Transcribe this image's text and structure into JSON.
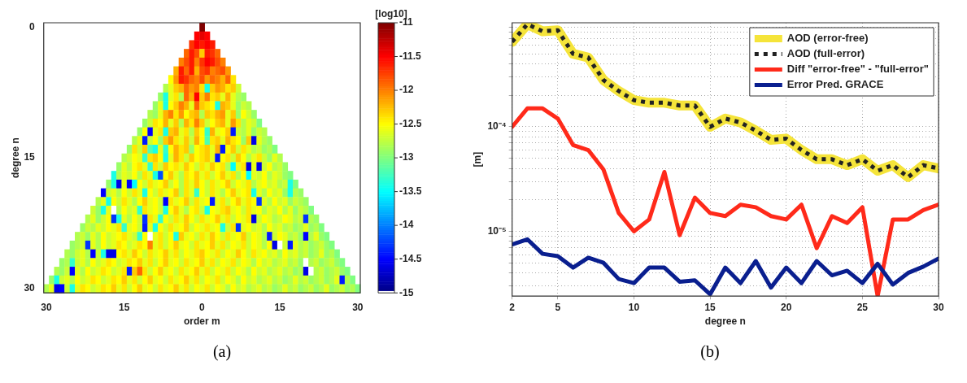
{
  "chart_data": [
    {
      "type": "heatmap",
      "xlabel": "order m",
      "ylabel": "degree n",
      "clabel": "[log10]",
      "annotations": [
        "(a)"
      ],
      "categories": [
        "30",
        null,
        null,
        null,
        null,
        null,
        null,
        null,
        null,
        null,
        null,
        null,
        null,
        null,
        null,
        "15",
        null,
        null,
        null,
        null,
        null,
        null,
        null,
        null,
        null,
        null,
        null,
        null,
        null,
        null,
        "0",
        null,
        null,
        null,
        null,
        null,
        null,
        null,
        null,
        null,
        null,
        null,
        null,
        null,
        null,
        "15",
        null,
        null,
        null,
        null,
        null,
        null,
        null,
        null,
        null,
        null,
        null,
        null,
        null,
        null,
        "30"
      ],
      "y_categories": [
        "0",
        null,
        null,
        null,
        null,
        null,
        null,
        null,
        null,
        null,
        null,
        null,
        null,
        null,
        null,
        "15",
        null,
        null,
        null,
        null,
        null,
        null,
        null,
        null,
        null,
        null,
        null,
        null,
        null,
        null,
        "30"
      ],
      "clim": [
        -15,
        -11
      ],
      "cticks": [
        -11,
        -11.5,
        -12,
        -12.5,
        -13,
        -13.5,
        -14,
        -14.5,
        -15
      ],
      "cells": [
        [
          null,
          null,
          null,
          null,
          null,
          null,
          null,
          null,
          null,
          null,
          null,
          null,
          null,
          null,
          null,
          null,
          null,
          null,
          null,
          null,
          null,
          null,
          null,
          null,
          null,
          null,
          null,
          null,
          null,
          null,
          -11.0,
          null,
          null,
          null,
          null,
          null,
          null,
          null,
          null,
          null,
          null,
          null,
          null,
          null,
          null,
          null,
          null,
          null,
          null,
          null,
          null,
          null,
          null,
          null,
          null,
          null,
          null,
          null,
          null,
          null,
          null
        ],
        [
          null,
          null,
          null,
          null,
          null,
          null,
          null,
          null,
          null,
          null,
          null,
          null,
          null,
          null,
          null,
          null,
          null,
          null,
          null,
          null,
          null,
          null,
          null,
          null,
          null,
          null,
          null,
          null,
          null,
          -11.5,
          -11.4,
          -11.5,
          null,
          null,
          null,
          null,
          null,
          null,
          null,
          null,
          null,
          null,
          null,
          null,
          null,
          null,
          null,
          null,
          null,
          null,
          null,
          null,
          null,
          null,
          null,
          null,
          null,
          null,
          null,
          null,
          null
        ],
        [
          null,
          null,
          null,
          null,
          null,
          null,
          null,
          null,
          null,
          null,
          null,
          null,
          null,
          null,
          null,
          null,
          null,
          null,
          null,
          null,
          null,
          null,
          null,
          null,
          null,
          null,
          null,
          null,
          -11.7,
          -11.5,
          -11.6,
          -11.5,
          -11.6,
          null,
          null,
          null,
          null,
          null,
          null,
          null,
          null,
          null,
          null,
          null,
          null,
          null,
          null,
          null,
          null,
          null,
          null,
          null,
          null,
          null,
          null,
          null,
          null,
          null,
          null,
          null,
          null
        ],
        [
          null,
          null,
          null,
          null,
          null,
          null,
          null,
          null,
          null,
          null,
          null,
          null,
          null,
          null,
          null,
          null,
          null,
          null,
          null,
          null,
          null,
          null,
          null,
          null,
          null,
          null,
          null,
          -11.9,
          -11.6,
          -11.8,
          -12.3,
          -11.6,
          -11.7,
          -11.9,
          null,
          null,
          null,
          null,
          null,
          null,
          null,
          null,
          null,
          null,
          null,
          null,
          null,
          null,
          null,
          null,
          null,
          null,
          null,
          null,
          null,
          null,
          null,
          null,
          null,
          null,
          null
        ],
        [
          null,
          null,
          null,
          null,
          null,
          null,
          null,
          null,
          null,
          null,
          null,
          null,
          null,
          null,
          null,
          null,
          null,
          null,
          null,
          null,
          null,
          null,
          null,
          null,
          null,
          null,
          -12.0,
          -11.8,
          -11.6,
          -12.0,
          -11.7,
          -11.5,
          -11.6,
          -11.8,
          -12.0,
          null,
          null,
          null,
          null,
          null,
          null,
          null,
          null,
          null,
          null,
          null,
          null,
          null,
          null,
          null,
          null,
          null,
          null,
          null,
          null,
          null,
          null,
          null,
          null,
          null,
          null
        ],
        [
          null,
          null,
          null,
          null,
          null,
          null,
          null,
          null,
          null,
          null,
          null,
          null,
          null,
          null,
          null,
          null,
          null,
          null,
          null,
          null,
          null,
          null,
          null,
          null,
          null,
          -12.2,
          -11.6,
          -11.9,
          -11.6,
          -12.2,
          -11.8,
          -11.7,
          -12.0,
          -11.9,
          -11.8,
          -12.1,
          null,
          null,
          null,
          null,
          null,
          null,
          null,
          null,
          null,
          null,
          null,
          null,
          null,
          null,
          null,
          null,
          null,
          null,
          null,
          null,
          null,
          null,
          null,
          null,
          null
        ],
        [
          null,
          null,
          null,
          null,
          null,
          null,
          null,
          null,
          null,
          null,
          null,
          null,
          null,
          null,
          null,
          null,
          null,
          null,
          null,
          null,
          null,
          null,
          null,
          null,
          -12.5,
          -12.1,
          -11.6,
          -11.7,
          -11.9,
          -12.0,
          -11.8,
          -12.1,
          -11.9,
          -12.0,
          -12.2,
          -11.9,
          -12.4,
          null,
          null,
          null,
          null,
          null,
          null,
          null,
          null,
          null,
          null,
          null,
          null,
          null,
          null,
          null,
          null,
          null,
          null,
          null,
          null,
          null,
          null,
          null,
          null
        ],
        [
          null,
          null,
          null,
          null,
          null,
          null,
          null,
          null,
          null,
          null,
          null,
          null,
          null,
          null,
          null,
          null,
          null,
          null,
          null,
          null,
          null,
          null,
          null,
          -12.8,
          -12.6,
          -12.3,
          -12.2,
          -11.9,
          -12.1,
          -12.0,
          -12.4,
          -13.4,
          -12.3,
          -12.1,
          -12.2,
          -12.4,
          -12.3,
          -12.7,
          null,
          null,
          null,
          null,
          null,
          null,
          null,
          null,
          null,
          null,
          null,
          null,
          null,
          null,
          null,
          null,
          null,
          null,
          null,
          null,
          null,
          null,
          null
        ],
        [
          null,
          null,
          null,
          null,
          null,
          null,
          null,
          null,
          null,
          null,
          null,
          null,
          null,
          null,
          null,
          null,
          null,
          null,
          null,
          null,
          null,
          null,
          -12.9,
          -13.4,
          -12.6,
          -12.4,
          -12.8,
          -11.9,
          -12.2,
          -11.5,
          -12.3,
          -12.0,
          -12.4,
          -12.3,
          -12.6,
          -12.2,
          -12.6,
          -12.8,
          -12.9,
          null,
          null,
          null,
          null,
          null,
          null,
          null,
          null,
          null,
          null,
          null,
          null,
          null,
          null,
          null,
          null,
          null,
          null,
          null,
          null,
          null,
          null
        ],
        [
          null,
          null,
          null,
          null,
          null,
          null,
          null,
          null,
          null,
          null,
          null,
          null,
          null,
          null,
          null,
          null,
          null,
          null,
          null,
          null,
          null,
          -12.9,
          -12.6,
          -13.4,
          -12.5,
          -12.3,
          -12.0,
          -12.2,
          -12.6,
          -11.9,
          -12.3,
          -12.4,
          -12.5,
          -13.4,
          -12.2,
          -12.3,
          -12.6,
          -12.9,
          -12.7,
          -12.8,
          null,
          null,
          null,
          null,
          null,
          null,
          null,
          null,
          null,
          null,
          null,
          null,
          null,
          null,
          null,
          null,
          null,
          null,
          null,
          null,
          null
        ],
        [
          null,
          null,
          null,
          null,
          null,
          null,
          null,
          null,
          null,
          null,
          null,
          null,
          null,
          null,
          null,
          null,
          null,
          null,
          null,
          null,
          -12.8,
          -12.9,
          -12.6,
          -12.2,
          -12.0,
          -12.4,
          -12.1,
          -12.5,
          -12.3,
          -12.2,
          -12.8,
          -12.3,
          -12.4,
          -12.2,
          -12.1,
          -12.6,
          -12.3,
          -12.9,
          -12.5,
          -12.7,
          -12.9,
          null,
          null,
          null,
          null,
          null,
          null,
          null,
          null,
          null,
          null,
          null,
          null,
          null,
          null,
          null,
          null,
          null,
          null,
          null,
          null
        ],
        [
          null,
          null,
          null,
          null,
          null,
          null,
          null,
          null,
          null,
          null,
          null,
          null,
          null,
          null,
          null,
          null,
          null,
          null,
          null,
          -12.9,
          -12.7,
          -12.4,
          -12.5,
          -12.2,
          -12.6,
          -12.3,
          -12.8,
          -12.2,
          -12.4,
          -12.0,
          -12.3,
          -12.7,
          -12.5,
          -12.3,
          -12.2,
          -12.6,
          -12.1,
          -12.4,
          -12.8,
          -12.6,
          -12.7,
          -13.0,
          null,
          null,
          null,
          null,
          null,
          null,
          null,
          null,
          null,
          null,
          null,
          null,
          null,
          null,
          null,
          null,
          null,
          null,
          null
        ],
        [
          null,
          null,
          null,
          null,
          null,
          null,
          null,
          null,
          null,
          null,
          null,
          null,
          null,
          null,
          null,
          null,
          null,
          null,
          -12.9,
          -12.5,
          -14.5,
          -12.6,
          -12.4,
          -13.4,
          -12.3,
          -12.2,
          -12.6,
          -12.4,
          -12.8,
          -12.3,
          -12.5,
          -13.3,
          -12.2,
          -12.6,
          -12.5,
          -12.3,
          -14.4,
          -12.7,
          -12.8,
          -12.6,
          -12.9,
          -12.7,
          -12.8,
          null,
          null,
          null,
          null,
          null,
          null,
          null,
          null,
          null,
          null,
          null,
          null,
          null,
          null,
          null,
          null,
          null,
          null
        ],
        [
          null,
          null,
          null,
          null,
          null,
          null,
          null,
          null,
          null,
          null,
          null,
          null,
          null,
          null,
          null,
          null,
          null,
          -12.8,
          -12.6,
          -14.4,
          -12.7,
          -12.5,
          -12.9,
          -12.3,
          -12.1,
          -12.4,
          -12.6,
          -12.3,
          -12.7,
          -12.2,
          -12.5,
          -13.2,
          -12.4,
          -12.3,
          -12.6,
          -12.2,
          -12.4,
          -12.5,
          -12.9,
          -12.3,
          -14.6,
          -12.6,
          -12.8,
          -12.9,
          null,
          null,
          null,
          null,
          null,
          null,
          null,
          null,
          null,
          null,
          null,
          null,
          null,
          null,
          null,
          null,
          null
        ],
        [
          null,
          null,
          null,
          null,
          null,
          null,
          null,
          null,
          null,
          null,
          null,
          null,
          null,
          null,
          null,
          null,
          -12.9,
          -12.4,
          -12.7,
          -12.3,
          -13.2,
          -13.4,
          -12.6,
          -13.3,
          -12.5,
          -12.2,
          -12.4,
          -12.3,
          -12.9,
          -12.5,
          -12.4,
          -12.3,
          -12.6,
          -12.2,
          -14.4,
          -12.5,
          -12.3,
          -12.7,
          -12.4,
          -12.6,
          -12.8,
          -12.7,
          -12.9,
          -12.8,
          -13.0,
          null,
          null,
          null,
          null,
          null,
          null,
          null,
          null,
          null,
          null,
          null,
          null,
          null,
          null,
          null,
          null
        ],
        [
          null,
          null,
          null,
          null,
          null,
          null,
          null,
          null,
          null,
          null,
          null,
          null,
          null,
          null,
          null,
          -12.8,
          -12.7,
          -12.5,
          -12.6,
          -13.3,
          -12.4,
          -12.3,
          -12.5,
          -13.4,
          -12.6,
          -12.2,
          -12.4,
          -12.7,
          -12.3,
          -12.5,
          -12.4,
          -12.3,
          -12.6,
          -14.4,
          -12.5,
          -12.4,
          -12.7,
          -12.3,
          -12.5,
          -12.8,
          -12.6,
          -12.4,
          -12.7,
          -12.9,
          -12.6,
          -12.8,
          null,
          null,
          null,
          null,
          null,
          null,
          null,
          null,
          null,
          null,
          null,
          null,
          null,
          null,
          null
        ],
        [
          null,
          null,
          null,
          null,
          null,
          null,
          null,
          null,
          null,
          null,
          null,
          null,
          null,
          null,
          -12.9,
          -12.6,
          -12.8,
          -12.5,
          -12.4,
          -12.6,
          -13.3,
          -12.4,
          -12.7,
          -12.3,
          -12.5,
          -12.4,
          -12.6,
          -12.3,
          -12.5,
          -12.7,
          -12.4,
          -12.6,
          -12.3,
          -12.5,
          -12.4,
          -12.8,
          -13.5,
          -12.6,
          -12.4,
          -14.6,
          -12.6,
          -14.6,
          -12.7,
          -12.5,
          -12.8,
          -12.7,
          -12.9,
          null,
          null,
          null,
          null,
          null,
          null,
          null,
          null,
          null,
          null,
          null,
          null,
          null,
          null
        ],
        [
          null,
          null,
          null,
          null,
          null,
          null,
          null,
          null,
          null,
          null,
          null,
          null,
          null,
          -13.4,
          -12.8,
          -12.6,
          -12.7,
          -12.5,
          -12.8,
          -12.4,
          -12.6,
          -13.4,
          -14.2,
          -12.5,
          -12.3,
          -12.6,
          -12.8,
          -12.4,
          -12.5,
          -12.3,
          -12.6,
          -12.4,
          -12.7,
          -12.5,
          -12.3,
          -12.6,
          -12.4,
          -12.8,
          -12.5,
          -13.5,
          -12.6,
          -12.7,
          -12.5,
          -12.8,
          -12.6,
          -12.7,
          -12.9,
          -13.0,
          null,
          null,
          null,
          null,
          null,
          null,
          null,
          null,
          null,
          null,
          null,
          null,
          null
        ],
        [
          null,
          null,
          null,
          null,
          null,
          null,
          null,
          null,
          null,
          null,
          null,
          null,
          -12.9,
          -13.4,
          -14.6,
          -12.6,
          -14.5,
          -13.5,
          -12.5,
          -12.7,
          -12.4,
          -12.6,
          -12.5,
          -12.3,
          -12.7,
          -12.5,
          -12.8,
          -12.4,
          -12.6,
          -12.3,
          -12.5,
          -12.7,
          -12.4,
          -12.6,
          -12.5,
          -12.3,
          -12.7,
          -12.5,
          -12.6,
          -12.4,
          -12.8,
          -12.6,
          -12.5,
          -12.7,
          -12.6,
          -12.8,
          -12.7,
          -13.4,
          -13.0,
          null,
          null,
          null,
          null,
          null,
          null,
          null,
          null,
          null,
          null,
          null,
          null
        ],
        [
          null,
          null,
          null,
          null,
          null,
          null,
          null,
          null,
          null,
          null,
          null,
          -14.5,
          -12.7,
          -12.6,
          -12.8,
          -12.5,
          -12.7,
          -12.4,
          -12.6,
          -13.4,
          -12.5,
          -12.7,
          -12.4,
          -12.6,
          -12.5,
          -12.3,
          -12.8,
          -12.4,
          -12.6,
          -13.3,
          -12.5,
          -12.7,
          -12.4,
          -12.6,
          -12.8,
          -12.5,
          -12.3,
          -12.6,
          -12.5,
          -12.4,
          -13.4,
          -12.6,
          -12.8,
          -12.5,
          -12.7,
          -12.6,
          -12.9,
          -13.4,
          -12.8,
          -12.9,
          null,
          null,
          null,
          null,
          null,
          null,
          null,
          null,
          null,
          null,
          null
        ],
        [
          null,
          null,
          null,
          null,
          null,
          null,
          null,
          null,
          null,
          null,
          -12.8,
          -12.6,
          -13.4,
          -12.5,
          -12.7,
          -12.4,
          -12.6,
          -12.8,
          -12.5,
          -12.3,
          -12.6,
          -12.5,
          -12.7,
          -14.5,
          -12.4,
          -12.6,
          -12.5,
          -12.3,
          -12.7,
          -12.4,
          -12.6,
          -12.5,
          -14.4,
          -12.6,
          -12.4,
          -12.7,
          -12.5,
          -12.3,
          -12.6,
          -12.4,
          -12.5,
          -14.3,
          -12.6,
          -12.8,
          -12.5,
          -12.7,
          -12.6,
          -12.9,
          -12.7,
          -12.8,
          -12.9,
          null,
          null,
          null,
          null,
          null,
          null,
          null,
          null,
          null,
          null
        ],
        [
          null,
          null,
          null,
          null,
          null,
          null,
          null,
          null,
          null,
          -12.7,
          -12.9,
          -13.4,
          -12.6,
          -15.0,
          -12.8,
          -12.5,
          -12.7,
          -12.6,
          -13.3,
          -12.4,
          -12.6,
          -12.5,
          -12.7,
          -13.4,
          -12.5,
          -12.3,
          -12.6,
          -12.8,
          -12.5,
          -12.4,
          -12.7,
          -13.4,
          -12.5,
          -12.6,
          -12.4,
          -12.3,
          -12.6,
          -12.5,
          -12.7,
          -12.4,
          -12.6,
          -12.5,
          -12.8,
          -12.6,
          -12.7,
          -12.5,
          -12.8,
          -12.6,
          -12.9,
          -12.7,
          -12.8,
          -13.0,
          null,
          null,
          null,
          null,
          null,
          null,
          null,
          null,
          null
        ],
        [
          null,
          null,
          null,
          null,
          null,
          null,
          null,
          null,
          -12.8,
          -12.6,
          -12.9,
          -12.7,
          -12.5,
          -14.3,
          -13.4,
          -12.6,
          -12.8,
          -12.5,
          -12.7,
          -14.3,
          -12.4,
          -12.6,
          -13.3,
          -12.5,
          -12.7,
          -12.4,
          -12.6,
          -12.3,
          -12.5,
          -12.7,
          -12.4,
          -12.6,
          -12.5,
          -12.3,
          -12.6,
          -12.4,
          -12.7,
          -12.5,
          -12.6,
          -12.4,
          -14.6,
          -12.7,
          -12.5,
          -12.6,
          -12.8,
          -12.7,
          -12.5,
          -12.6,
          -12.8,
          -12.7,
          -14.3,
          -12.8,
          -12.9,
          null,
          null,
          null,
          null,
          null,
          null,
          null,
          null
        ],
        [
          null,
          null,
          null,
          null,
          null,
          null,
          null,
          -12.9,
          -12.7,
          -12.8,
          -12.6,
          -12.7,
          -12.5,
          -12.6,
          -12.4,
          -13.3,
          -12.6,
          -12.5,
          -12.7,
          -14.4,
          -12.6,
          -13.4,
          -12.5,
          -12.7,
          -12.4,
          -12.6,
          -12.5,
          -12.3,
          -12.7,
          -12.5,
          -12.6,
          -12.4,
          -12.6,
          -12.5,
          -13.4,
          -12.7,
          -12.4,
          -14.3,
          -12.6,
          -12.5,
          -12.7,
          -12.6,
          -12.8,
          -12.5,
          -12.7,
          -12.6,
          -12.8,
          -12.7,
          -12.9,
          -12.8,
          -12.6,
          -12.9,
          -12.8,
          -13.0,
          null,
          null,
          null,
          null,
          null,
          null,
          null
        ],
        [
          null,
          null,
          null,
          null,
          null,
          null,
          -12.8,
          -12.7,
          -12.9,
          -12.6,
          -12.8,
          -12.5,
          -12.7,
          -12.6,
          -12.5,
          -12.4,
          -12.6,
          -12.7,
          -13.3,
          -12.5,
          -15.0,
          -12.6,
          -12.4,
          -12.7,
          -12.5,
          -13.4,
          -12.3,
          -12.6,
          -12.5,
          -12.7,
          -12.4,
          -12.6,
          -12.3,
          -12.5,
          -12.7,
          -12.4,
          -12.6,
          -12.5,
          -12.3,
          -12.7,
          -12.5,
          -12.6,
          -12.8,
          -14.4,
          -12.7,
          -12.5,
          -12.6,
          -12.8,
          -12.7,
          -12.9,
          -14.5,
          -12.8,
          -12.6,
          -12.9,
          -13.0,
          null,
          null,
          null,
          null,
          null,
          null
        ],
        [
          null,
          null,
          null,
          null,
          null,
          -12.9,
          -12.8,
          -12.7,
          -14.3,
          -12.6,
          -12.8,
          -12.5,
          -12.7,
          -12.6,
          -12.4,
          -12.5,
          -12.7,
          -12.6,
          -12.4,
          -12.5,
          -12.0,
          -12.6,
          -12.4,
          -12.7,
          -12.5,
          -12.3,
          -12.6,
          -12.5,
          -12.7,
          -12.4,
          -12.6,
          -12.5,
          -12.3,
          -12.6,
          -12.4,
          -12.7,
          -12.5,
          -12.6,
          -12.4,
          -12.7,
          -12.5,
          -12.6,
          -12.8,
          -12.5,
          -14.6,
          -15.0,
          -12.7,
          -14.4,
          -12.6,
          -12.8,
          -12.7,
          -12.9,
          -12.8,
          -12.7,
          -12.9,
          -13.0,
          null,
          null,
          null,
          null,
          null
        ],
        [
          null,
          null,
          null,
          null,
          -12.8,
          -12.9,
          -12.7,
          -12.6,
          -12.8,
          -14.5,
          -12.7,
          -13.4,
          -14.6,
          -14.6,
          -12.5,
          -12.4,
          -12.6,
          -12.3,
          -12.5,
          -12.7,
          -12.4,
          -12.6,
          -12.5,
          -12.3,
          -12.6,
          -12.4,
          -12.7,
          -12.5,
          -12.6,
          -12.4,
          -12.3,
          -12.5,
          -12.6,
          -12.4,
          -12.7,
          -12.5,
          -12.6,
          -12.3,
          -12.5,
          -12.7,
          -12.4,
          -12.6,
          -12.5,
          -12.7,
          -12.6,
          -12.8,
          -12.5,
          -12.7,
          -12.6,
          -12.8,
          -12.7,
          -12.9,
          -12.8,
          -12.6,
          -12.9,
          -12.8,
          -13.0,
          null,
          null,
          null,
          null
        ],
        [
          null,
          null,
          null,
          -12.9,
          -12.8,
          -13.3,
          -12.7,
          -12.6,
          -12.8,
          -12.5,
          -12.7,
          -12.6,
          -12.4,
          -12.5,
          -12.7,
          -12.6,
          -12.4,
          -12.5,
          -12.3,
          -12.6,
          -12.4,
          -12.7,
          -12.5,
          -12.3,
          -12.6,
          -12.5,
          -12.7,
          -12.4,
          -12.6,
          -12.5,
          -12.3,
          -12.6,
          -12.4,
          -12.7,
          -12.5,
          -12.6,
          -12.4,
          -12.7,
          -12.5,
          -12.6,
          -12.8,
          -12.5,
          -12.7,
          -12.6,
          -12.8,
          -12.7,
          -12.6,
          -12.8,
          -12.7,
          -12.9,
          -15.0,
          -12.8,
          -12.7,
          -12.9,
          -12.8,
          -12.7,
          -12.9,
          -13.0,
          null,
          null,
          null
        ],
        [
          null,
          null,
          -12.8,
          -12.9,
          -12.7,
          -14.5,
          -12.6,
          -12.8,
          -12.5,
          -12.7,
          -12.6,
          -12.4,
          -12.5,
          -12.7,
          -12.6,
          -12.4,
          -14.4,
          -12.3,
          -11.9,
          -12.4,
          -12.7,
          -12.5,
          -12.3,
          -12.6,
          -12.5,
          -12.7,
          -12.4,
          -12.6,
          -12.5,
          -12.3,
          -12.6,
          -12.4,
          -12.7,
          -12.5,
          -12.6,
          -12.4,
          -12.7,
          -12.5,
          -12.6,
          -12.8,
          -12.5,
          -12.7,
          -12.6,
          -12.8,
          -12.7,
          -12.6,
          -12.8,
          -12.7,
          -12.9,
          -12.8,
          -14.6,
          -15.0,
          -12.8,
          -12.7,
          -12.9,
          -12.8,
          -12.7,
          -12.9,
          -13.0,
          null,
          null
        ],
        [
          null,
          -12.9,
          -13.4,
          -12.7,
          -12.6,
          -12.8,
          -12.5,
          -12.7,
          -12.6,
          -12.4,
          -12.5,
          -12.7,
          -12.6,
          -12.4,
          -12.5,
          -12.3,
          -12.6,
          -12.4,
          -12.7,
          -12.5,
          -12.3,
          -12.6,
          -12.5,
          -12.7,
          -12.4,
          -12.6,
          -12.5,
          -12.3,
          -12.6,
          -12.4,
          -12.7,
          -12.5,
          -12.6,
          -12.4,
          -12.7,
          -12.5,
          -12.6,
          -12.8,
          -12.5,
          -12.7,
          -12.6,
          -12.8,
          -12.7,
          -12.6,
          -12.8,
          -12.7,
          -12.9,
          -12.8,
          -12.6,
          -12.8,
          -12.7,
          -12.9,
          -12.8,
          -12.7,
          -12.9,
          -12.8,
          -12.6,
          -14.4,
          -12.8,
          -13.0,
          null
        ],
        [
          -12.8,
          -12.6,
          -14.6,
          -14.5,
          -12.7,
          -13.4,
          -12.6,
          -12.4,
          -12.5,
          -12.7,
          -12.6,
          -12.4,
          -12.5,
          -12.3,
          -12.6,
          -12.4,
          -12.7,
          -12.5,
          -12.3,
          -12.6,
          -12.5,
          -12.7,
          -12.4,
          -12.6,
          -12.5,
          -12.3,
          -12.6,
          -12.4,
          -12.7,
          -12.5,
          -12.6,
          -12.4,
          -12.7,
          -12.5,
          -12.6,
          -12.8,
          -12.5,
          -12.7,
          -12.6,
          -12.8,
          -12.7,
          -12.6,
          -12.8,
          -12.7,
          -12.9,
          -12.8,
          -12.6,
          -12.8,
          -12.7,
          -12.9,
          -12.8,
          -12.7,
          -12.9,
          -12.8,
          -12.6,
          -12.9,
          -12.8,
          -12.7,
          -12.9,
          -12.8,
          -13.0
        ]
      ]
    },
    {
      "type": "line",
      "xlabel": "degree n",
      "ylabel": "[m]",
      "annotations": [
        "(b)"
      ],
      "log": "y",
      "grid": true,
      "legend": "top right",
      "marker": "none",
      "x": [
        2,
        3,
        4,
        5,
        6,
        7,
        8,
        9,
        10,
        11,
        12,
        13,
        14,
        15,
        16,
        17,
        18,
        19,
        20,
        21,
        22,
        23,
        24,
        25,
        26,
        27,
        28,
        29,
        30
      ],
      "xlim": [
        2,
        30
      ],
      "xticks": [
        2,
        5,
        10,
        15,
        20,
        25,
        30
      ],
      "ylim": [
        2.4e-06,
        0.00099
      ],
      "yticks": [
        {
          "value": 3e-06,
          "label": null
        },
        {
          "value": 4e-06,
          "label": null
        },
        {
          "value": 5e-06,
          "label": null
        },
        {
          "value": 6e-06,
          "label": null
        },
        {
          "value": 7e-06,
          "label": null
        },
        {
          "value": 8e-06,
          "label": null
        },
        {
          "value": 9e-06,
          "label": null
        },
        {
          "value": 1e-05,
          "label": "10⁻⁵"
        },
        {
          "value": 2e-05,
          "label": null
        },
        {
          "value": 3e-05,
          "label": null
        },
        {
          "value": 4e-05,
          "label": null
        },
        {
          "value": 5e-05,
          "label": null
        },
        {
          "value": 6e-05,
          "label": null
        },
        {
          "value": 7e-05,
          "label": null
        },
        {
          "value": 8e-05,
          "label": null
        },
        {
          "value": 9e-05,
          "label": null
        },
        {
          "value": 0.0001,
          "label": "10⁻⁴"
        },
        {
          "value": 0.0002,
          "label": null
        },
        {
          "value": 0.0003,
          "label": null
        },
        {
          "value": 0.0004,
          "label": null
        },
        {
          "value": 0.0005,
          "label": null
        },
        {
          "value": 0.0006,
          "label": null
        },
        {
          "value": 0.0007,
          "label": null
        },
        {
          "value": 0.0008,
          "label": null
        },
        {
          "value": 0.0009,
          "label": null
        }
      ],
      "series": [
        {
          "name": "AOD (error-free)",
          "color": "#f5e43a",
          "line_style": "solid",
          "values": [
            0.00065,
            0.00096,
            0.00082,
            0.00084,
            0.0005,
            0.00046,
            0.00028,
            0.00022,
            0.00018,
            0.00017,
            0.00017,
            0.00016,
            0.00016,
            0.0001,
            0.00012,
            0.00011,
            9.2e-05,
            7.5e-05,
            7.7e-05,
            6e-05,
            4.9e-05,
            4.9e-05,
            4.3e-05,
            4.9e-05,
            3.8e-05,
            4.3e-05,
            3.3e-05,
            4.3e-05,
            4e-05
          ]
        },
        {
          "name": "AOD (full-error)",
          "color": "#222222",
          "line_style": "dotted",
          "values": [
            0.00065,
            0.00096,
            0.00082,
            0.00084,
            0.0005,
            0.00046,
            0.00028,
            0.00022,
            0.00018,
            0.00017,
            0.00017,
            0.00016,
            0.00016,
            0.0001,
            0.00012,
            0.00011,
            9.2e-05,
            7.5e-05,
            7.7e-05,
            6e-05,
            4.9e-05,
            4.9e-05,
            4.3e-05,
            4.9e-05,
            3.8e-05,
            4.3e-05,
            3.3e-05,
            4.3e-05,
            4e-05
          ]
        },
        {
          "name": "Diff \"error-free\" - \"full-error\"",
          "color": "#ff2a1a",
          "line_style": "solid",
          "values": [
            0.0001,
            0.00015,
            0.00015,
            0.00012,
            6.7e-05,
            6e-05,
            3.9e-05,
            1.5e-05,
            1e-05,
            1.3e-05,
            3.7e-05,
            9.2e-06,
            2.1e-05,
            1.5e-05,
            1.4e-05,
            1.8e-05,
            1.7e-05,
            1.4e-05,
            1.3e-05,
            1.8e-05,
            6.9e-06,
            1.4e-05,
            1.2e-05,
            1.7e-05,
            2.4e-06,
            1.3e-05,
            1.3e-05,
            1.6e-05,
            1.8e-05
          ]
        },
        {
          "name": "Error Pred. GRACE",
          "color": "#0a1f8f",
          "line_style": "solid",
          "values": [
            7.5e-06,
            8.4e-06,
            6.1e-06,
            5.8e-06,
            4.5e-06,
            5.6e-06,
            5e-06,
            3.5e-06,
            3.2e-06,
            4.5e-06,
            4.5e-06,
            3.3e-06,
            3.4e-06,
            2.5e-06,
            4.5e-06,
            3.2e-06,
            5.2e-06,
            2.9e-06,
            4.5e-06,
            3.2e-06,
            5.2e-06,
            3.8e-06,
            4.2e-06,
            3.2e-06,
            4.9e-06,
            3.1e-06,
            4e-06,
            4.6e-06,
            5.5e-06
          ]
        }
      ]
    }
  ]
}
